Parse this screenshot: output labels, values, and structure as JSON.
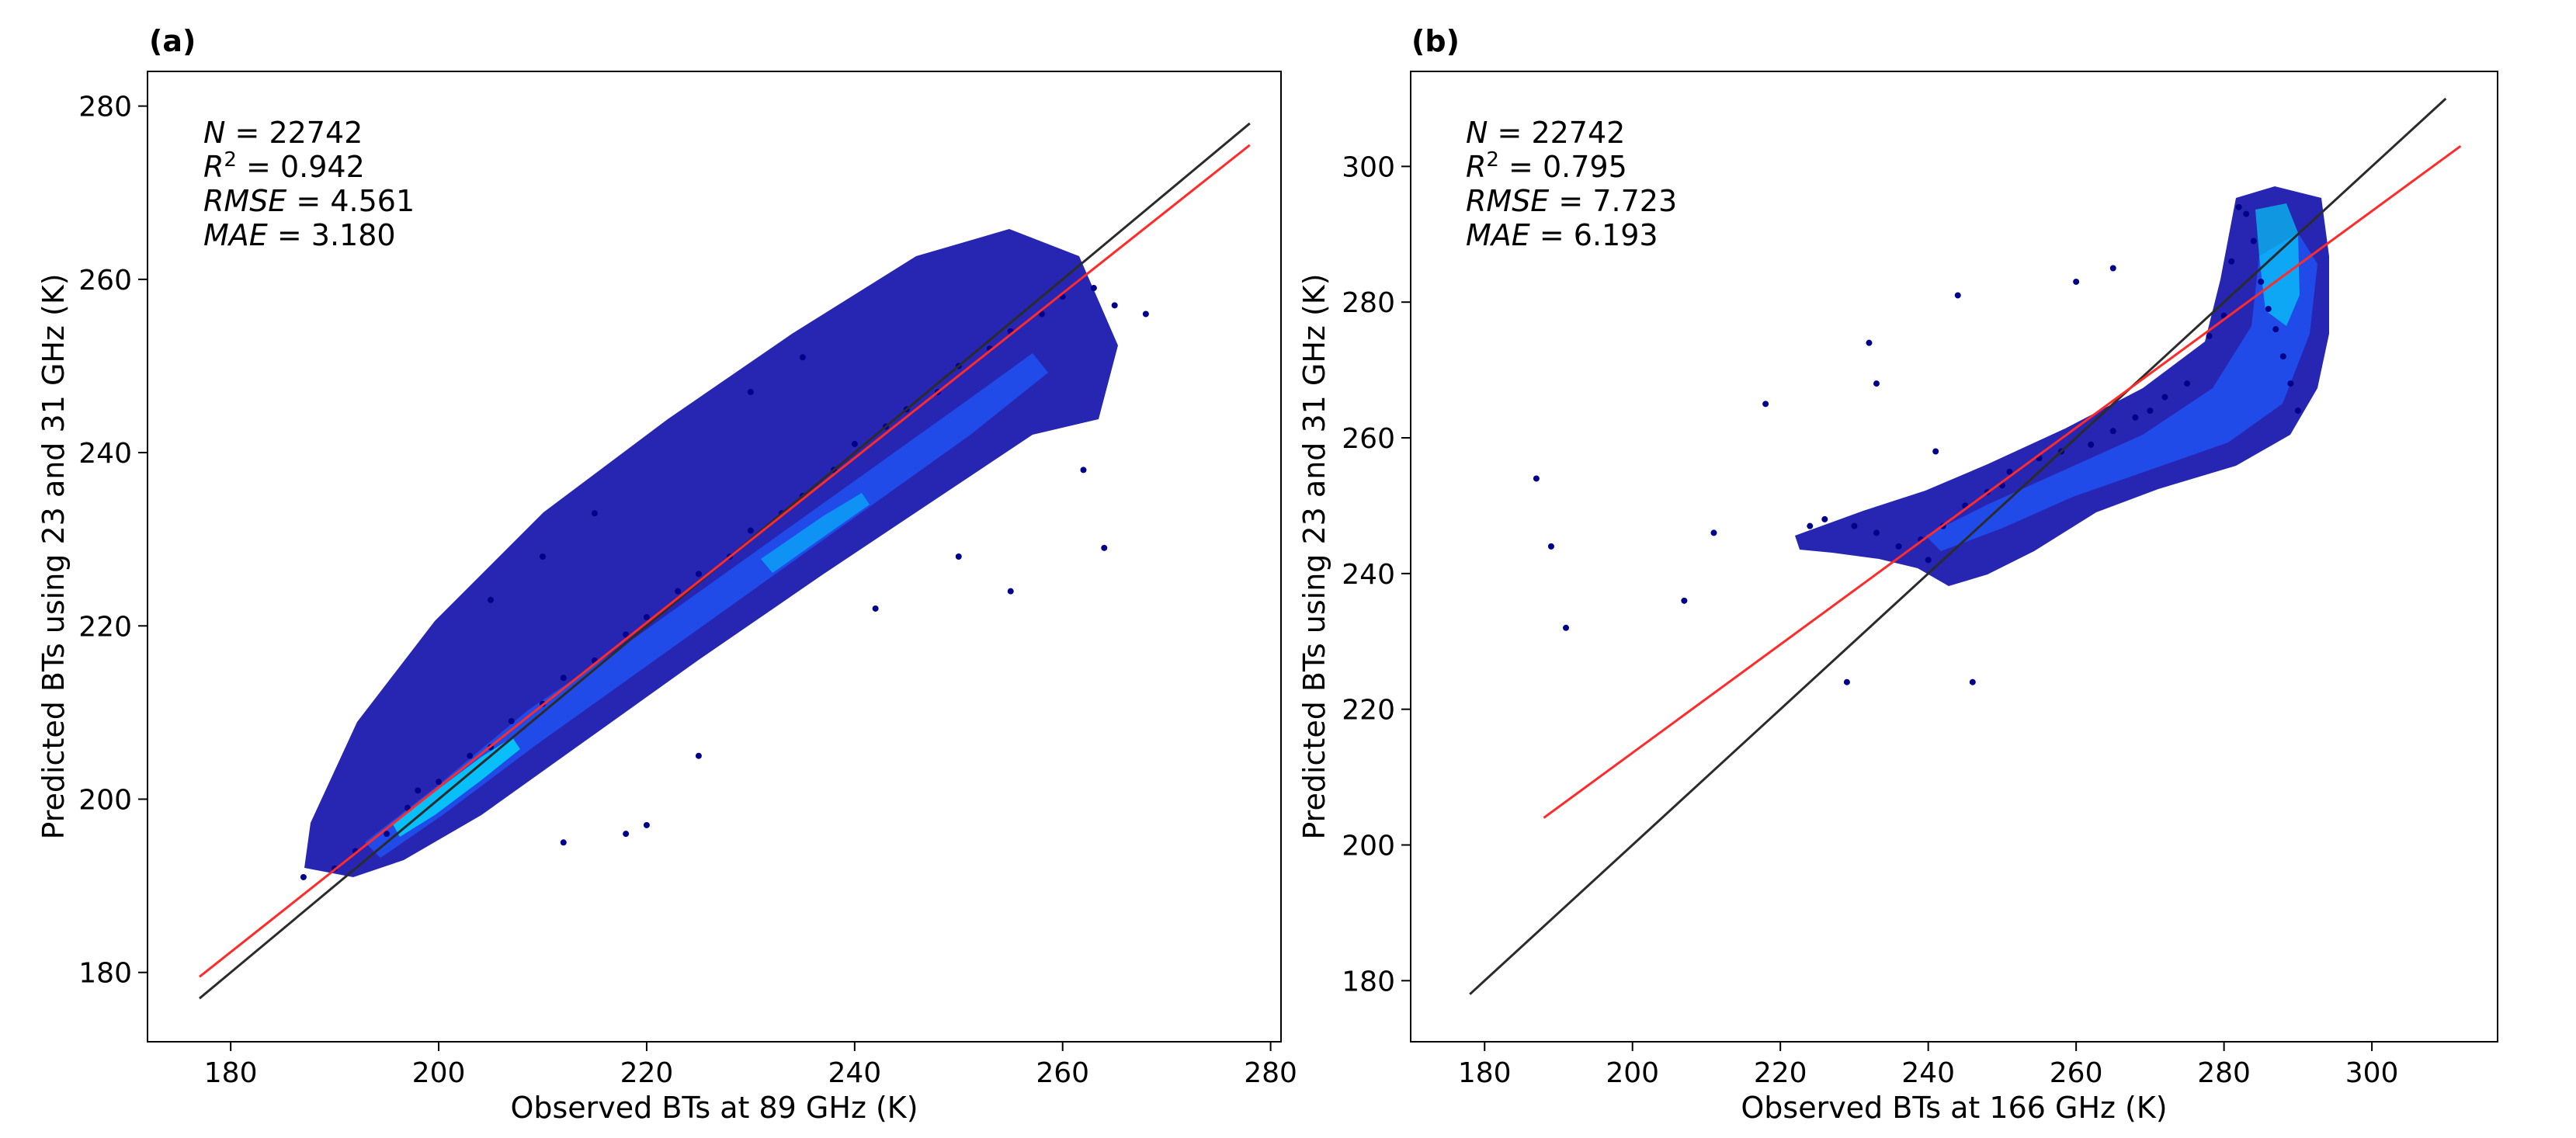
{
  "colors": {
    "identity_line": "#2b2b2b",
    "fit_line": "#ff2a2a",
    "density_low": "#00008b",
    "density_mid": "#00c8ff",
    "density_high": "#ffff00"
  },
  "chart_data": [
    {
      "type": "scatter",
      "panel_label": "(a)",
      "xlabel": "Observed BTs at 89 GHz (K)",
      "ylabel": "Predicted BTs using 23 and 31 GHz (K)",
      "xlim": [
        172,
        281
      ],
      "ylim": [
        172,
        284
      ],
      "xticks": [
        180,
        200,
        220,
        240,
        260,
        280
      ],
      "yticks": [
        180,
        200,
        220,
        240,
        260,
        280
      ],
      "stats": [
        {
          "name": "N",
          "sup": "",
          "value": "22742"
        },
        {
          "name": "R",
          "sup": "2",
          "value": "0.942"
        },
        {
          "name": "RMSE",
          "sup": "",
          "value": "4.561"
        },
        {
          "name": "MAE",
          "sup": "",
          "value": "3.180"
        }
      ],
      "identity_line": {
        "x": [
          177,
          278
        ],
        "y": [
          177,
          278
        ]
      },
      "fit_line": {
        "x": [
          177,
          278
        ],
        "y": [
          179.5,
          275.5
        ]
      },
      "density_note": "dense point cloud along the fit line from about 187 K to 268 K observed",
      "sample_points": {
        "x": [
          187,
          190,
          192,
          195,
          197,
          198,
          200,
          203,
          205,
          207,
          210,
          212,
          215,
          218,
          220,
          223,
          225,
          228,
          230,
          233,
          235,
          238,
          240,
          243,
          245,
          248,
          250,
          253,
          255,
          258,
          260,
          263,
          265,
          268,
          205,
          210,
          215,
          212,
          218,
          220,
          225,
          242,
          250,
          255,
          262,
          264,
          230,
          235
        ],
        "y": [
          191,
          192,
          194,
          196,
          199,
          201,
          202,
          205,
          206,
          209,
          211,
          214,
          216,
          219,
          221,
          224,
          226,
          228,
          231,
          233,
          235,
          238,
          241,
          243,
          245,
          247,
          250,
          252,
          254,
          256,
          258,
          259,
          257,
          256,
          223,
          228,
          233,
          195,
          196,
          197,
          205,
          222,
          228,
          224,
          238,
          229,
          247,
          251
        ]
      }
    },
    {
      "type": "scatter",
      "panel_label": "(b)",
      "xlabel": "Observed BTs at 166 GHz (K)",
      "ylabel": "Predicted BTs using 23 and 31 GHz (K)",
      "xlim": [
        170,
        317
      ],
      "ylim": [
        171,
        314
      ],
      "xticks": [
        180,
        200,
        220,
        240,
        260,
        280,
        300
      ],
      "yticks": [
        180,
        200,
        220,
        240,
        260,
        280,
        300
      ],
      "stats": [
        {
          "name": "N",
          "sup": "",
          "value": "22742"
        },
        {
          "name": "R",
          "sup": "2",
          "value": "0.795"
        },
        {
          "name": "RMSE",
          "sup": "",
          "value": "7.723"
        },
        {
          "name": "MAE",
          "sup": "",
          "value": "6.193"
        }
      ],
      "identity_line": {
        "x": [
          178,
          310
        ],
        "y": [
          178,
          310
        ]
      },
      "fit_line": {
        "x": [
          188,
          312
        ],
        "y": [
          204,
          303
        ]
      },
      "density_note": "curved point cloud from about 222 K to 291 K observed, vertical cluster near 280-288 K",
      "sample_points": {
        "x": [
          187,
          189,
          191,
          207,
          211,
          218,
          224,
          226,
          230,
          233,
          236,
          239,
          240,
          242,
          245,
          248,
          250,
          251,
          255,
          258,
          262,
          265,
          268,
          270,
          272,
          275,
          278,
          280,
          281,
          282,
          283,
          284,
          285,
          286,
          287,
          288,
          289,
          290,
          229,
          232,
          241,
          244,
          246,
          260,
          265,
          233
        ],
        "y": [
          254,
          244,
          232,
          236,
          246,
          265,
          247,
          248,
          247,
          246,
          244,
          245,
          242,
          247,
          250,
          252,
          253,
          255,
          257,
          258,
          259,
          261,
          263,
          264,
          266,
          268,
          275,
          278,
          286,
          294,
          293,
          289,
          283,
          279,
          276,
          272,
          268,
          264,
          224,
          274,
          258,
          281,
          224,
          283,
          285,
          268
        ]
      }
    }
  ]
}
